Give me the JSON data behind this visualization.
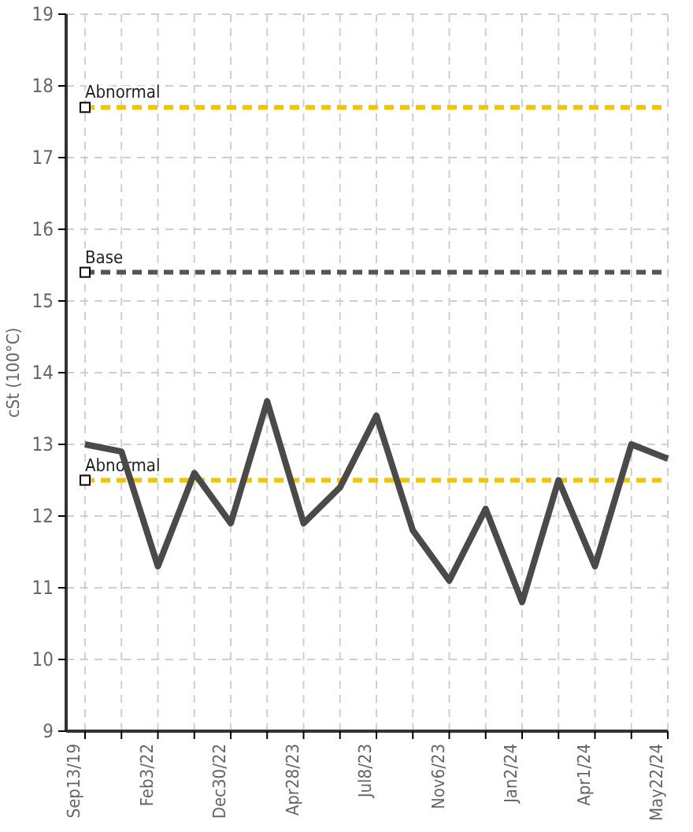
{
  "chart_data": {
    "type": "line",
    "ylabel": "cSt (100°C)",
    "categories": [
      "Sep13/19",
      null,
      "Feb3/22",
      null,
      "Dec30/22",
      null,
      "Apr28/23",
      null,
      "Jul8/23",
      null,
      "Nov6/23",
      null,
      "Jan2/24",
      null,
      "Apr1/24",
      null,
      "May22/24"
    ],
    "series": [
      {
        "color": "#4a4a4a",
        "values": [
          13.0,
          12.9,
          11.3,
          12.6,
          11.9,
          13.6,
          11.9,
          12.4,
          13.4,
          11.8,
          11.1,
          12.1,
          10.8,
          12.5,
          11.3,
          13.0,
          12.8
        ]
      }
    ],
    "ylim": [
      9,
      19
    ],
    "yticks": [
      9,
      10,
      11,
      12,
      13,
      14,
      15,
      16,
      17,
      18,
      19
    ],
    "grid": true,
    "marker": "none",
    "line_style": "solid",
    "ref_lines": [
      {
        "axis": "y",
        "value": 17.7,
        "label": "Abnormal",
        "color": "#f5c400",
        "line_style": "dashed"
      },
      {
        "axis": "y",
        "value": 15.4,
        "label": "Base",
        "color": "#555555",
        "line_style": "dashed"
      },
      {
        "axis": "y",
        "value": 12.5,
        "label": "Abnormal",
        "color": "#f5c400",
        "line_style": "dashed"
      }
    ]
  }
}
